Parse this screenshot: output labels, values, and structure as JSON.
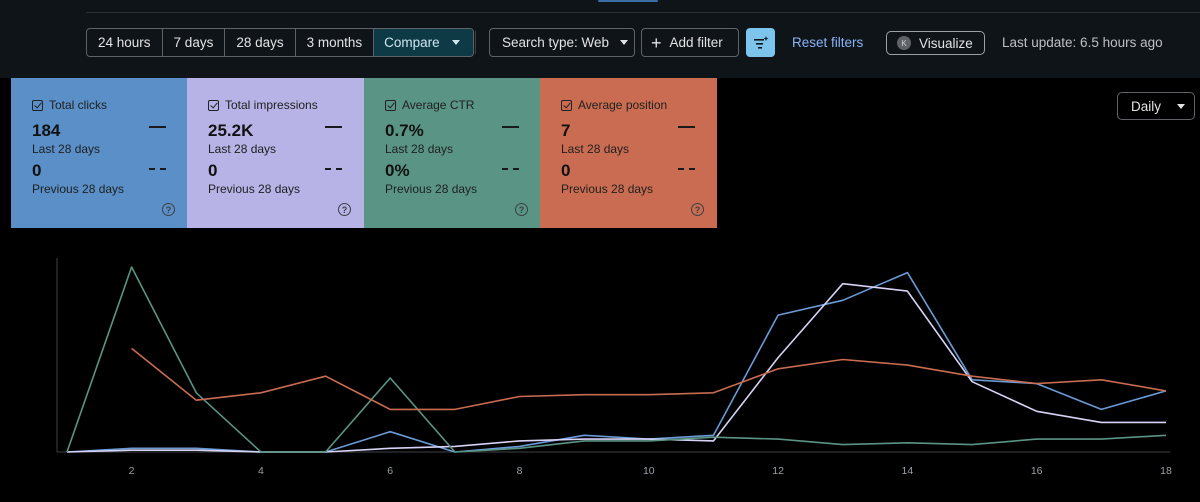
{
  "toolbar": {
    "ranges": [
      "24 hours",
      "7 days",
      "28 days",
      "3 months"
    ],
    "compare_label": "Compare",
    "search_type_label": "Search type: Web",
    "add_filter_label": "Add filter",
    "reset_filters_label": "Reset filters",
    "visualize_label": "Visualize",
    "visualize_avatar": "K",
    "last_update": "Last update: 6.5 hours ago"
  },
  "metrics": [
    {
      "label": "Total clicks",
      "value": "184",
      "current_period": "Last 28 days",
      "previous_value": "0",
      "previous_period": "Previous 28 days"
    },
    {
      "label": "Total impressions",
      "value": "25.2K",
      "current_period": "Last 28 days",
      "previous_value": "0",
      "previous_period": "Previous 28 days"
    },
    {
      "label": "Average CTR",
      "value": "0.7%",
      "current_period": "Last 28 days",
      "previous_value": "0%",
      "previous_period": "Previous 28 days"
    },
    {
      "label": "Average position",
      "value": "7",
      "current_period": "Last 28 days",
      "previous_value": "0",
      "previous_period": "Previous 28 days"
    }
  ],
  "granularity_label": "Daily",
  "chart_data": {
    "type": "line",
    "x": [
      1,
      2,
      3,
      4,
      5,
      6,
      7,
      8,
      9,
      10,
      11,
      12,
      13,
      14,
      15,
      16,
      17,
      18
    ],
    "x_ticks": [
      "2",
      "4",
      "6",
      "8",
      "10",
      "12",
      "14",
      "16",
      "18"
    ],
    "xlim": [
      1,
      18
    ],
    "ylim": [
      0,
      100
    ],
    "series": [
      {
        "name": "Total clicks",
        "color": "#6a9bd6",
        "values": [
          0,
          2,
          2,
          0,
          0,
          11,
          0,
          3,
          9,
          7,
          9,
          74,
          82,
          97,
          39,
          37,
          23,
          33
        ]
      },
      {
        "name": "Total impressions",
        "color": "#d7d3f6",
        "values": [
          0,
          1,
          1,
          0,
          0,
          2,
          3,
          6,
          7,
          7,
          6,
          51,
          91,
          87,
          38,
          22,
          16,
          16
        ]
      },
      {
        "name": "Average CTR",
        "color": "#5a9485",
        "values": [
          0,
          100,
          32,
          0,
          0,
          40,
          0,
          2,
          6,
          6,
          8,
          7,
          4,
          5,
          4,
          7,
          7,
          9
        ]
      },
      {
        "name": "Average position",
        "color": "#c96c51",
        "values": [
          null,
          56,
          28,
          32,
          41,
          23,
          23,
          30,
          31,
          31,
          32,
          45,
          50,
          47,
          41,
          37,
          39,
          33
        ]
      }
    ]
  }
}
